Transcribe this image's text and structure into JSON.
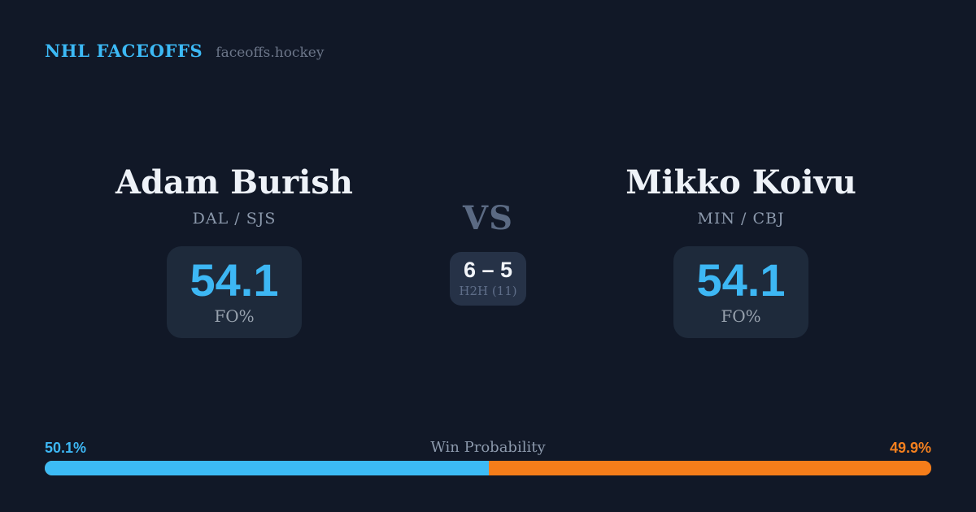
{
  "header": {
    "brand": "NHL FACEOFFS",
    "site": "faceoffs.hockey"
  },
  "matchup": {
    "vs_label": "VS",
    "left": {
      "name": "Adam Burish",
      "teams": "DAL / SJS",
      "stat_value": "54.1",
      "stat_label": "FO%"
    },
    "right": {
      "name": "Mikko Koivu",
      "teams": "MIN / CBJ",
      "stat_value": "54.1",
      "stat_label": "FO%"
    },
    "h2h": {
      "record": "6 – 5",
      "label": "H2H (11)"
    }
  },
  "win_probability": {
    "title": "Win Probability",
    "left_pct_label": "50.1%",
    "right_pct_label": "49.9%",
    "left_width": "50.1%",
    "left_color": "#3cbbf5",
    "right_color": "#f57d1a"
  },
  "colors": {
    "background": "#111827",
    "accent_blue": "#3db7f4",
    "accent_orange": "#f5801e",
    "card": "#1e2a3b",
    "h2h_card": "#263247"
  }
}
